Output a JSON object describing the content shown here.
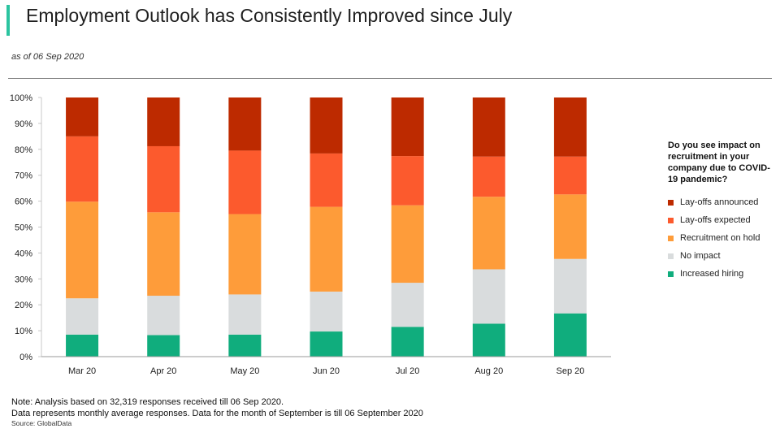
{
  "header": {
    "title": "Employment Outlook has Consistently Improved since July",
    "subtitle": "as of 06 Sep 2020",
    "accent_color": "#2bc4a0"
  },
  "legend": {
    "title": "Do you see impact on recruitment in your company due to COVID-19 pandemic?",
    "items": [
      {
        "label": "Lay-offs announced",
        "color": "#bd2a00"
      },
      {
        "label": "Lay-offs expected",
        "color": "#fc5a2d"
      },
      {
        "label": "Recruitment on hold",
        "color": "#fe9c3a"
      },
      {
        "label": "No impact",
        "color": "#d9dcdd"
      },
      {
        "label": "Increased hiring",
        "color": "#10ad7d"
      }
    ]
  },
  "chart_data": {
    "type": "bar",
    "stacked": true,
    "categories": [
      "Mar 20",
      "Apr 20",
      "May 20",
      "Jun 20",
      "Jul 20",
      "Aug 20",
      "Sep 20"
    ],
    "yticks": [
      "0%",
      "10%",
      "20%",
      "30%",
      "40%",
      "50%",
      "60%",
      "70%",
      "80%",
      "90%",
      "100%"
    ],
    "ylim": [
      0,
      100
    ],
    "series": [
      {
        "name": "Increased hiring",
        "color": "#10ad7d",
        "values": [
          8.5,
          8.3,
          8.5,
          9.7,
          11.5,
          12.7,
          16.7
        ]
      },
      {
        "name": "No impact",
        "color": "#d9dcdd",
        "values": [
          14.0,
          15.2,
          15.5,
          15.4,
          17.0,
          21.0,
          21.0
        ]
      },
      {
        "name": "Recruitment on hold",
        "color": "#fe9c3a",
        "values": [
          37.3,
          32.2,
          31.0,
          32.7,
          29.9,
          28.0,
          24.9
        ]
      },
      {
        "name": "Lay-offs expected",
        "color": "#fc5a2d",
        "values": [
          25.2,
          25.5,
          24.5,
          20.6,
          19.0,
          15.5,
          14.6
        ]
      },
      {
        "name": "Lay-offs announced",
        "color": "#bd2a00",
        "values": [
          15.0,
          18.8,
          20.5,
          21.6,
          22.6,
          22.8,
          22.8
        ]
      }
    ]
  },
  "notes": {
    "line1": "Note: Analysis based on 32,319 responses received till 06 Sep 2020.",
    "line2": "Data represents monthly average responses. Data for the month of September is till 06 September 2020",
    "source": "Source: GlobalData"
  }
}
